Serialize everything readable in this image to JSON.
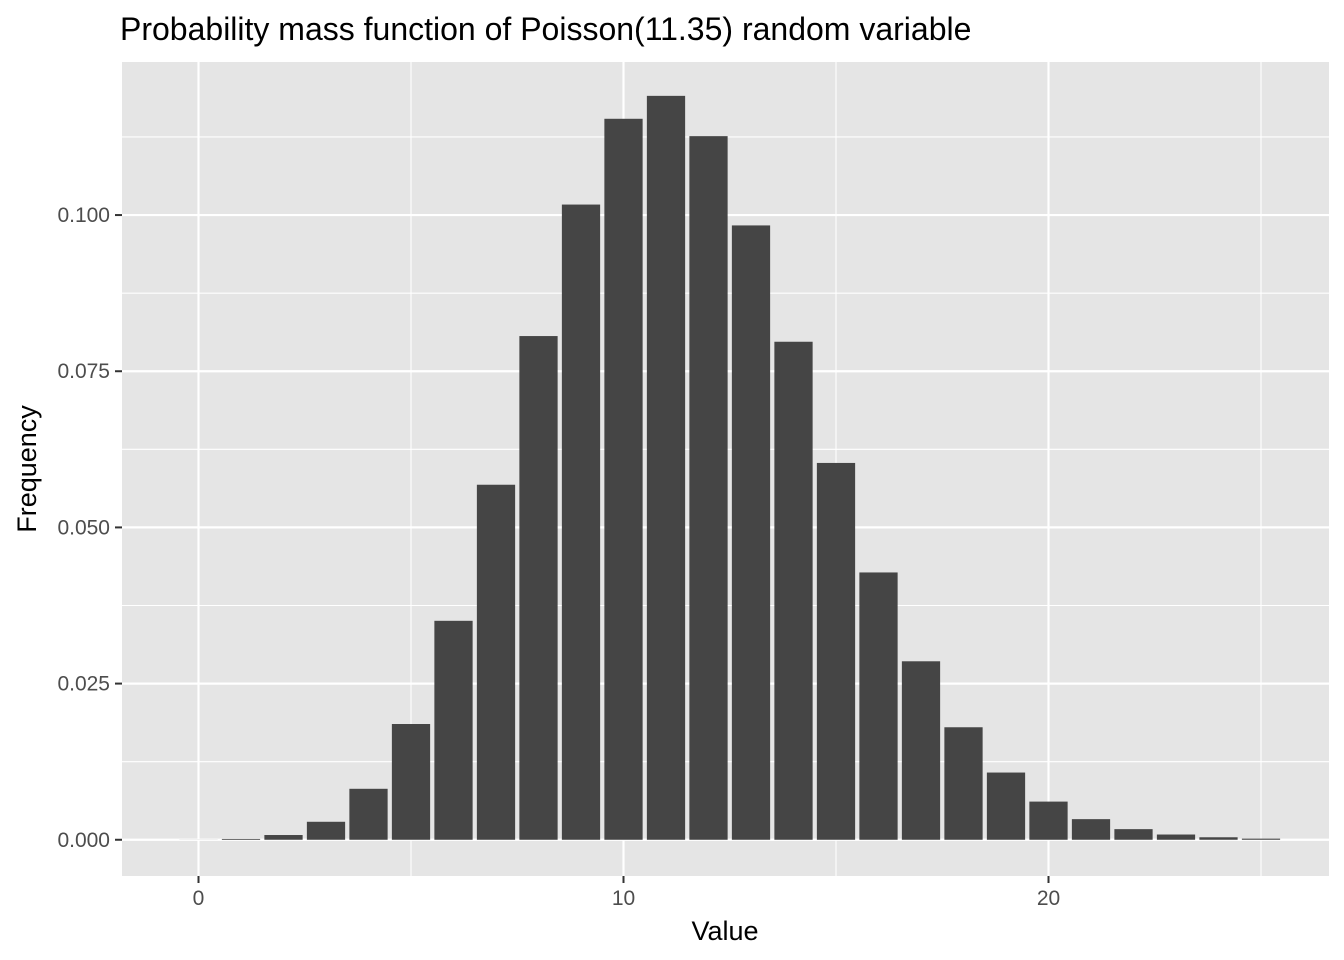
{
  "chart_data": {
    "type": "bar",
    "title": "Probability mass function of Poisson(11.35) random variable",
    "xlabel": "Value",
    "ylabel": "Frequency",
    "xlim": [
      -1.8,
      26.6
    ],
    "ylim": [
      -0.0058,
      0.1245
    ],
    "x_ticks": [
      0,
      10,
      20
    ],
    "x_tick_labels": [
      "0",
      "10",
      "20"
    ],
    "y_ticks": [
      0.0,
      0.025,
      0.05,
      0.075,
      0.1
    ],
    "y_tick_labels": [
      "0.000",
      "0.025",
      "0.050",
      "0.075",
      "0.100"
    ],
    "grid": true,
    "legend": "none",
    "bar_color": "#454545",
    "panel_color": "#e5e5e5",
    "grid_color": "#ffffff",
    "x": [
      0,
      1,
      2,
      3,
      4,
      5,
      6,
      7,
      8,
      9,
      10,
      11,
      12,
      13,
      14,
      15,
      16,
      17,
      18,
      19,
      20,
      21,
      22,
      23,
      24,
      25
    ],
    "values": [
      1.18e-05,
      0.000134,
      0.00076,
      0.00288,
      0.00816,
      0.01853,
      0.03505,
      0.05683,
      0.08063,
      0.10168,
      0.11541,
      0.11908,
      0.11263,
      0.09834,
      0.07972,
      0.06032,
      0.04279,
      0.02857,
      0.01801,
      0.01076,
      0.00611,
      0.0033,
      0.0017,
      0.00084,
      0.0004,
      0.00018
    ]
  }
}
